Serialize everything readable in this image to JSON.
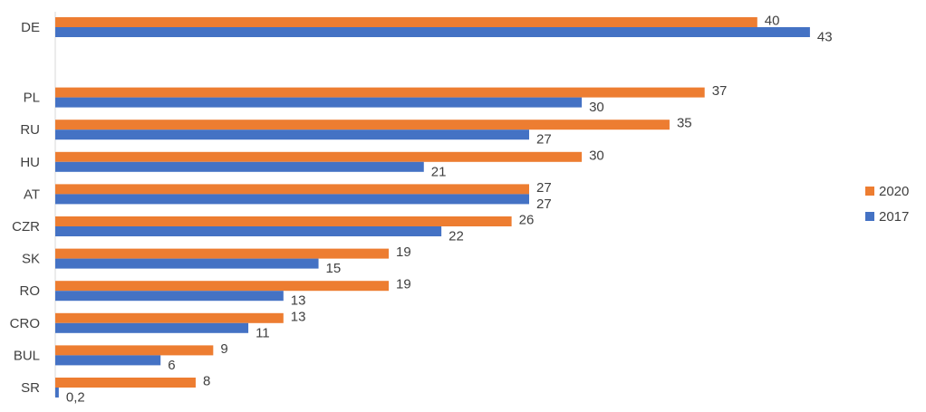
{
  "chart_data": {
    "type": "bar",
    "orientation": "horizontal",
    "categories": [
      "DE",
      "PL",
      "RU",
      "HU",
      "AT",
      "CZR",
      "SK",
      "RO",
      "CRO",
      "BUL",
      "SR"
    ],
    "series": [
      {
        "name": "2020",
        "color": "#ED7D31",
        "values": [
          40,
          37,
          35,
          30,
          27,
          26,
          19,
          19,
          13,
          9,
          8
        ],
        "labels": [
          "40",
          "37",
          "35",
          "30",
          "27",
          "26",
          "19",
          "19",
          "13",
          "9",
          "8"
        ]
      },
      {
        "name": "2017",
        "color": "#4472C4",
        "values": [
          43,
          30,
          27,
          21,
          27,
          22,
          15,
          13,
          11,
          6,
          0.2
        ],
        "labels": [
          "43",
          "30",
          "27",
          "21",
          "27",
          "22",
          "15",
          "13",
          "11",
          "6",
          "0,2"
        ]
      }
    ],
    "legend": {
      "position": "right",
      "order": [
        "2020",
        "2017"
      ]
    },
    "grid": false,
    "xlim": [
      0,
      45
    ]
  }
}
